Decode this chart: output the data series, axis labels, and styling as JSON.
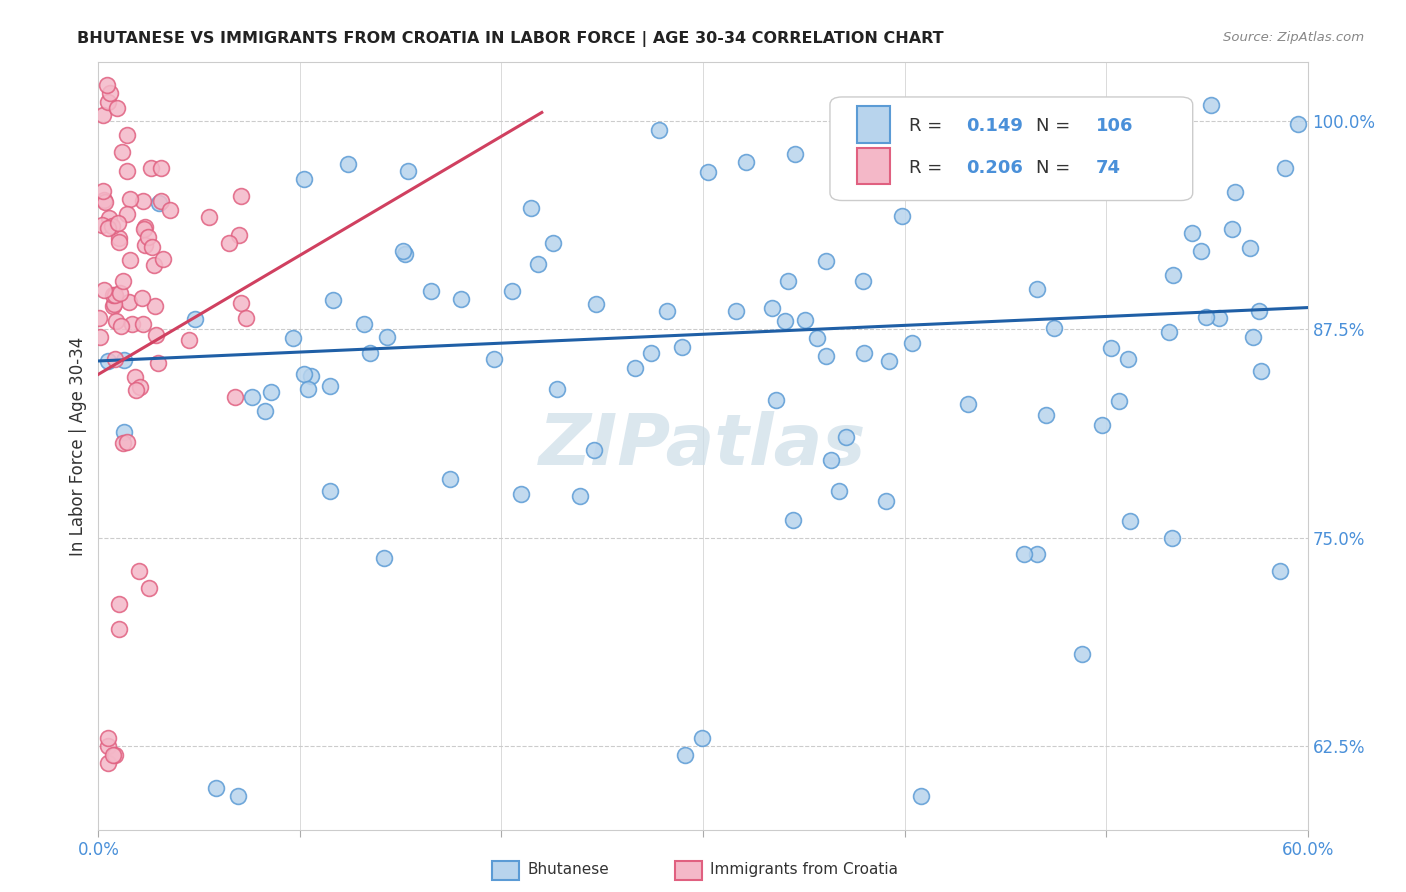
{
  "title": "BHUTANESE VS IMMIGRANTS FROM CROATIA IN LABOR FORCE | AGE 30-34 CORRELATION CHART",
  "source_text": "Source: ZipAtlas.com",
  "ylabel": "In Labor Force | Age 30-34",
  "xlim": [
    0.0,
    0.6
  ],
  "ylim": [
    0.575,
    1.035
  ],
  "xticks": [
    0.0,
    0.1,
    0.2,
    0.3,
    0.4,
    0.5,
    0.6
  ],
  "xticklabels": [
    "0.0%",
    "",
    "",
    "",
    "",
    "",
    "60.0%"
  ],
  "yticks_right": [
    0.625,
    0.75,
    0.875,
    1.0
  ],
  "yticklabels_right": [
    "62.5%",
    "75.0%",
    "87.5%",
    "100.0%"
  ],
  "blue_face": "#b8d4ed",
  "blue_edge": "#5b9bd5",
  "pink_face": "#f4b8c8",
  "pink_edge": "#e06080",
  "blue_line": "#1f5fa6",
  "pink_line": "#d04060",
  "axis_tick_color": "#4a90d9",
  "grid_color": "#cccccc",
  "title_color": "#222222",
  "ylabel_color": "#333333",
  "source_color": "#888888",
  "legend_R1": "0.149",
  "legend_N1": "106",
  "legend_R2": "0.206",
  "legend_N2": "74",
  "watermark_text": "ZIPatlas",
  "watermark_color": "#ccdde8",
  "bottom_legend_left": "Bhutanese",
  "bottom_legend_right": "Immigrants from Croatia",
  "blue_trend_x": [
    0.0,
    0.6
  ],
  "blue_trend_y": [
    0.856,
    0.888
  ],
  "pink_trend_x": [
    0.0,
    0.22
  ],
  "pink_trend_y": [
    0.848,
    1.005
  ]
}
